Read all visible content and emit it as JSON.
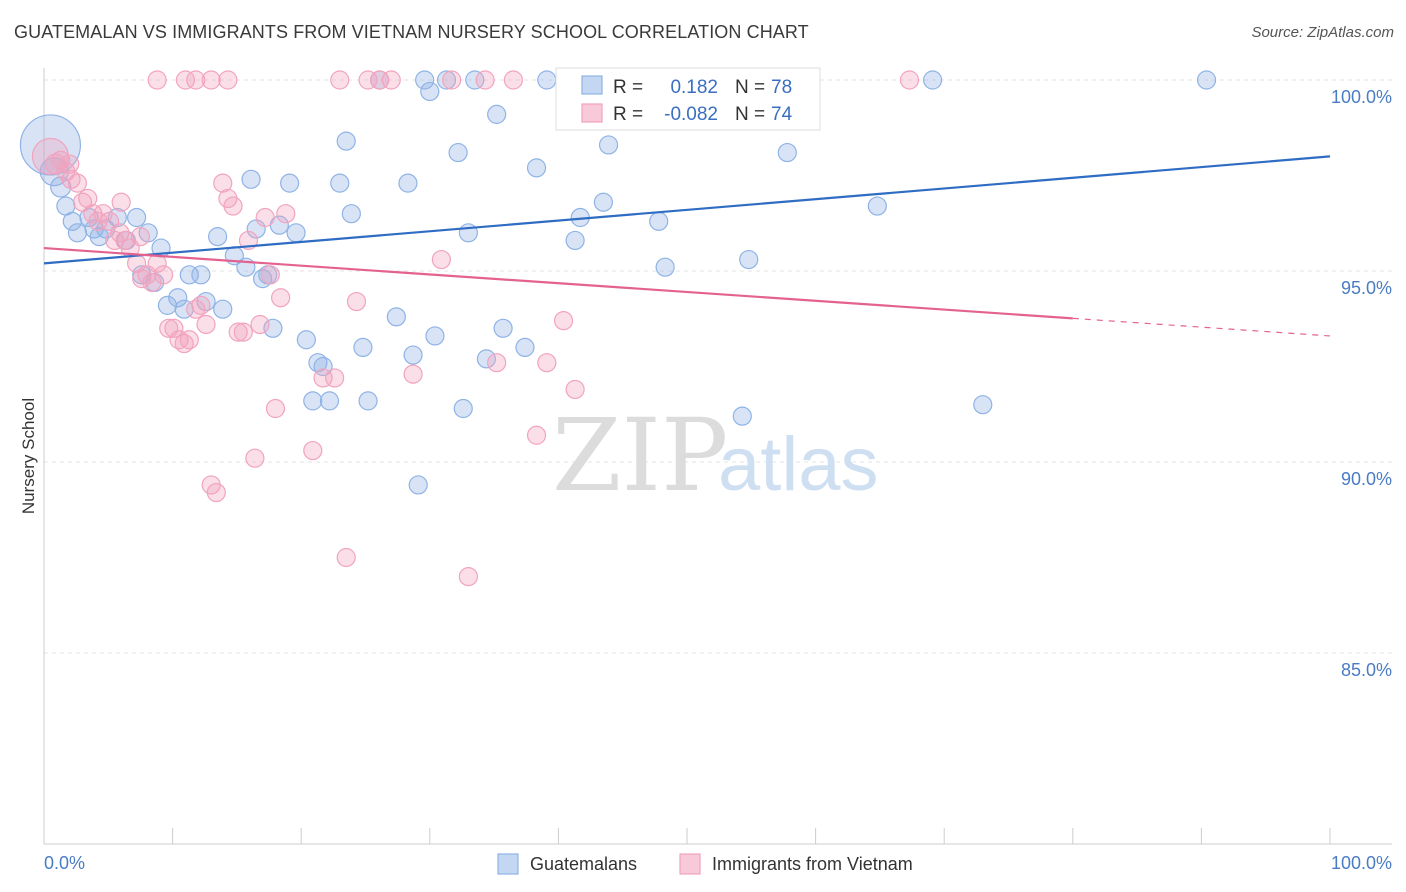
{
  "chart_data": {
    "type": "scatter",
    "title": "GUATEMALAN VS IMMIGRANTS FROM VIETNAM NURSERY SCHOOL CORRELATION CHART",
    "source": "Source: ZipAtlas.com",
    "xlabel": "",
    "ylabel": "Nursery School",
    "xlim": [
      0,
      100
    ],
    "ylim": [
      80.5,
      100.4
    ],
    "x_tick_labels": {
      "left": "0.0%",
      "right": "100.0%"
    },
    "x_minor_ticks": [
      0,
      10,
      20,
      30,
      40,
      50,
      60,
      70,
      80,
      90,
      100
    ],
    "y_ticks": [
      {
        "value": 100,
        "label": "100.0%"
      },
      {
        "value": 95,
        "label": "95.0%"
      },
      {
        "value": 90,
        "label": "90.0%"
      },
      {
        "value": 85,
        "label": "85.0%"
      }
    ],
    "grid": true,
    "watermark": {
      "zip": "ZIP",
      "atlas": "atlas"
    },
    "stats": [
      {
        "r_label": "R =",
        "r_value": "0.182",
        "n_label": "N =",
        "n_value": "78"
      },
      {
        "r_label": "R =",
        "r_value": "-0.082",
        "n_label": "N =",
        "n_value": "74"
      }
    ],
    "series": [
      {
        "name": "Guatemalans",
        "color": "#8fb3e6",
        "line_color": "#2f6cc4",
        "trend": {
          "x0": 0,
          "y0": 95.2,
          "x1": 100,
          "y1": 98.0,
          "solid_until": 100
        },
        "points": [
          [
            0.5,
            98.3,
            30
          ],
          [
            0.8,
            97.6,
            14
          ],
          [
            1.3,
            97.2,
            10
          ],
          [
            1.7,
            96.7,
            9
          ],
          [
            2.2,
            96.3,
            9
          ],
          [
            2.6,
            96.0,
            9
          ],
          [
            3.5,
            96.4,
            9
          ],
          [
            3.9,
            96.1,
            9
          ],
          [
            4.3,
            95.9,
            9
          ],
          [
            4.8,
            96.1,
            9
          ],
          [
            5.7,
            96.4,
            9
          ],
          [
            6.4,
            95.8,
            9
          ],
          [
            7.2,
            96.4,
            9
          ],
          [
            8.1,
            96.0,
            9
          ],
          [
            9.1,
            95.6,
            9
          ],
          [
            7.6,
            94.9,
            9
          ],
          [
            8.6,
            94.7,
            9
          ],
          [
            9.6,
            94.1,
            9
          ],
          [
            10.4,
            94.3,
            9
          ],
          [
            11.3,
            94.9,
            9
          ],
          [
            12.2,
            94.9,
            9
          ],
          [
            10.9,
            94.0,
            9
          ],
          [
            12.6,
            94.2,
            9
          ],
          [
            13.5,
            95.9,
            9
          ],
          [
            13.9,
            94.0,
            9
          ],
          [
            14.8,
            95.4,
            9
          ],
          [
            15.7,
            95.1,
            9
          ],
          [
            16.1,
            97.4,
            9
          ],
          [
            16.5,
            96.1,
            9
          ],
          [
            17.0,
            94.8,
            9
          ],
          [
            17.4,
            94.9,
            9
          ],
          [
            17.8,
            93.5,
            9
          ],
          [
            18.3,
            96.2,
            9
          ],
          [
            19.1,
            97.3,
            9
          ],
          [
            19.6,
            96.0,
            9
          ],
          [
            20.4,
            93.2,
            9
          ],
          [
            20.9,
            91.6,
            9
          ],
          [
            21.3,
            92.6,
            9
          ],
          [
            21.7,
            92.5,
            9
          ],
          [
            22.2,
            91.6,
            9
          ],
          [
            23.0,
            97.3,
            9
          ],
          [
            23.5,
            98.4,
            9
          ],
          [
            23.9,
            96.5,
            9
          ],
          [
            24.8,
            93.0,
            9
          ],
          [
            25.2,
            91.6,
            9
          ],
          [
            26.1,
            100.0,
            9
          ],
          [
            27.4,
            93.8,
            9
          ],
          [
            28.3,
            97.3,
            9
          ],
          [
            28.7,
            92.8,
            9
          ],
          [
            29.1,
            89.4,
            9
          ],
          [
            29.6,
            100.0,
            9
          ],
          [
            30.0,
            99.7,
            9
          ],
          [
            30.4,
            93.3,
            9
          ],
          [
            31.3,
            100.0,
            9
          ],
          [
            32.2,
            98.1,
            9
          ],
          [
            32.6,
            91.4,
            9
          ],
          [
            33.0,
            96.0,
            9
          ],
          [
            33.5,
            100.0,
            9
          ],
          [
            34.4,
            92.7,
            9
          ],
          [
            35.2,
            99.1,
            9
          ],
          [
            35.7,
            93.5,
            9
          ],
          [
            37.4,
            93.0,
            9
          ],
          [
            38.3,
            97.7,
            9
          ],
          [
            39.1,
            100.0,
            9
          ],
          [
            41.3,
            95.8,
            9
          ],
          [
            41.7,
            96.4,
            9
          ],
          [
            43.5,
            96.8,
            9
          ],
          [
            43.9,
            98.3,
            9
          ],
          [
            45.7,
            100.0,
            9
          ],
          [
            47.8,
            96.3,
            9
          ],
          [
            48.3,
            95.1,
            9
          ],
          [
            54.3,
            91.2,
            9
          ],
          [
            54.8,
            95.3,
            9
          ],
          [
            57.8,
            98.1,
            9
          ],
          [
            64.8,
            96.7,
            9
          ],
          [
            69.1,
            100.0,
            9
          ],
          [
            73.0,
            91.5,
            9
          ],
          [
            90.4,
            100.0,
            9
          ]
        ]
      },
      {
        "name": "Immigrants from Vietnam",
        "color": "#f2a3be",
        "line_color": "#e4628f",
        "trend": {
          "x0": 0,
          "y0": 95.6,
          "x1": 100,
          "y1": 93.3,
          "solid_until": 80
        },
        "points": [
          [
            0.5,
            98.0,
            18
          ],
          [
            0.9,
            97.8,
            10
          ],
          [
            1.3,
            97.9,
            9
          ],
          [
            1.7,
            97.6,
            9
          ],
          [
            2.1,
            97.4,
            9
          ],
          [
            2.6,
            97.3,
            9
          ],
          [
            3.0,
            96.8,
            9
          ],
          [
            3.4,
            96.9,
            9
          ],
          [
            3.8,
            96.5,
            9
          ],
          [
            4.2,
            96.3,
            9
          ],
          [
            4.6,
            96.5,
            9
          ],
          [
            5.1,
            96.3,
            9
          ],
          [
            5.5,
            95.8,
            9
          ],
          [
            5.9,
            96.0,
            9
          ],
          [
            6.3,
            95.8,
            9
          ],
          [
            6.7,
            95.6,
            9
          ],
          [
            7.2,
            95.2,
            9
          ],
          [
            7.6,
            94.8,
            9
          ],
          [
            8.0,
            94.9,
            9
          ],
          [
            8.4,
            94.7,
            9
          ],
          [
            8.8,
            95.2,
            9
          ],
          [
            9.3,
            94.9,
            9
          ],
          [
            9.7,
            93.5,
            9
          ],
          [
            10.1,
            93.5,
            9
          ],
          [
            10.5,
            93.2,
            9
          ],
          [
            10.9,
            93.1,
            9
          ],
          [
            11.3,
            93.2,
            9
          ],
          [
            11.8,
            94.0,
            9
          ],
          [
            12.2,
            94.1,
            9
          ],
          [
            12.6,
            93.6,
            9
          ],
          [
            13.0,
            89.4,
            9
          ],
          [
            13.4,
            89.2,
            9
          ],
          [
            13.9,
            97.3,
            9
          ],
          [
            14.3,
            96.9,
            9
          ],
          [
            14.7,
            96.7,
            9
          ],
          [
            15.1,
            93.4,
            9
          ],
          [
            15.5,
            93.4,
            9
          ],
          [
            15.9,
            95.8,
            9
          ],
          [
            16.4,
            90.1,
            9
          ],
          [
            16.8,
            93.6,
            9
          ],
          [
            17.2,
            96.4,
            9
          ],
          [
            17.6,
            94.9,
            9
          ],
          [
            18.0,
            91.4,
            9
          ],
          [
            18.4,
            94.3,
            9
          ],
          [
            18.8,
            96.5,
            9
          ],
          [
            20.9,
            90.3,
            9
          ],
          [
            21.7,
            92.2,
            9
          ],
          [
            22.6,
            92.2,
            9
          ],
          [
            23.0,
            100.0,
            9
          ],
          [
            23.5,
            87.5,
            9
          ],
          [
            24.3,
            94.2,
            9
          ],
          [
            25.2,
            100.0,
            9
          ],
          [
            26.1,
            100.0,
            9
          ],
          [
            27.0,
            100.0,
            9
          ],
          [
            28.7,
            92.3,
            9
          ],
          [
            30.9,
            95.3,
            9
          ],
          [
            31.7,
            100.0,
            9
          ],
          [
            33.0,
            87.0,
            9
          ],
          [
            34.3,
            100.0,
            9
          ],
          [
            35.2,
            92.6,
            9
          ],
          [
            36.5,
            100.0,
            9
          ],
          [
            38.3,
            90.7,
            9
          ],
          [
            39.1,
            92.6,
            9
          ],
          [
            40.4,
            93.7,
            9
          ],
          [
            41.3,
            91.9,
            9
          ],
          [
            8.8,
            100.0,
            9
          ],
          [
            11.0,
            100.0,
            9
          ],
          [
            11.8,
            100.0,
            9
          ],
          [
            13.0,
            100.0,
            9
          ],
          [
            14.3,
            100.0,
            9
          ],
          [
            67.3,
            100.0,
            9
          ],
          [
            6.0,
            96.8,
            9
          ],
          [
            7.5,
            95.9,
            9
          ],
          [
            2.0,
            97.8,
            9
          ]
        ]
      }
    ]
  }
}
